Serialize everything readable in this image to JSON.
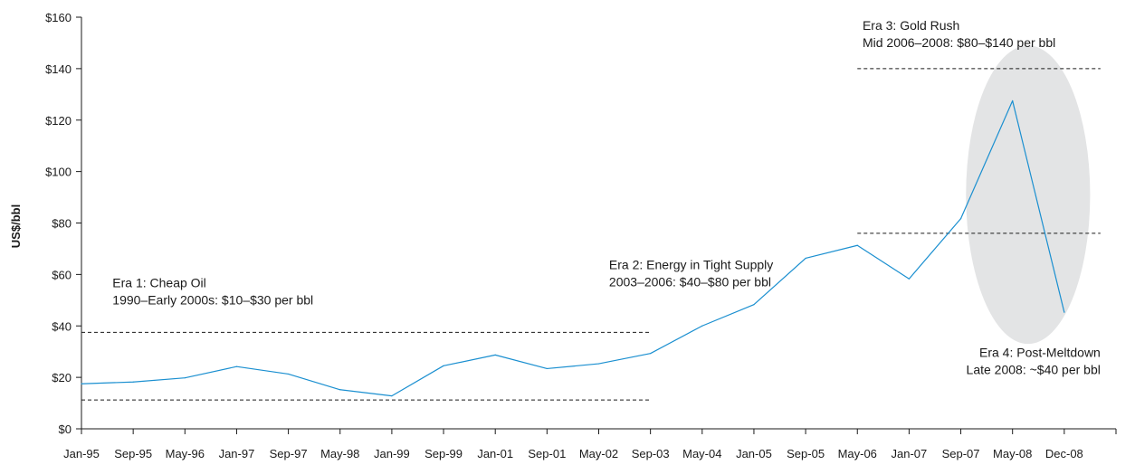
{
  "chart_data": {
    "type": "line",
    "title": "",
    "xlabel": "",
    "ylabel": "US$/bbl",
    "ylim": [
      0,
      160
    ],
    "y_ticks": [
      "$0",
      "$20",
      "$40",
      "$60",
      "$80",
      "$100",
      "$120",
      "$140",
      "$160"
    ],
    "grid": false,
    "x_tick_labels": [
      "Jan-95",
      "Sep-95",
      "May-96",
      "Jan-97",
      "Sep-97",
      "May-98",
      "Jan-99",
      "Sep-99",
      "Jan-01",
      "Sep-01",
      "May-02",
      "Sep-03",
      "May-04",
      "Jan-05",
      "Sep-05",
      "May-06",
      "Jan-07",
      "Sep-07",
      "May-08",
      "Dec-08"
    ],
    "series": [
      {
        "color": "#1a8fd0",
        "points": [
          {
            "x": 0,
            "y": 17.5
          },
          {
            "x": 1,
            "y": 18.2
          },
          {
            "x": 2,
            "y": 19.8
          },
          {
            "x": 3,
            "y": 24.2
          },
          {
            "x": 4,
            "y": 21.3
          },
          {
            "x": 5,
            "y": 15.2
          },
          {
            "x": 6,
            "y": 12.8
          },
          {
            "x": 7,
            "y": 24.5
          },
          {
            "x": 8,
            "y": 28.7
          },
          {
            "x": 9,
            "y": 23.4
          },
          {
            "x": 10,
            "y": 25.3
          },
          {
            "x": 11,
            "y": 29.3
          },
          {
            "x": 12,
            "y": 40.0
          },
          {
            "x": 13,
            "y": 48.3
          },
          {
            "x": 14,
            "y": 66.3
          },
          {
            "x": 15,
            "y": 71.3
          },
          {
            "x": 16,
            "y": 58.3
          },
          {
            "x": 17,
            "y": 81.7
          },
          {
            "x": 18,
            "y": 127.5
          },
          {
            "x": 19,
            "y": 45.3
          }
        ]
      }
    ],
    "reference_lines": [
      {
        "y": 37.5,
        "x_from": 0,
        "x_to": 11
      },
      {
        "y": 11.2,
        "x_from": 0,
        "x_to": 11
      },
      {
        "y": 140,
        "x_from": 15,
        "x_to": 19.7
      },
      {
        "y": 76,
        "x_from": 15,
        "x_to": 19.7
      }
    ],
    "highlight": {
      "type": "ellipse",
      "cx": 18.3,
      "cy": 91,
      "rx": 1.2,
      "ry": 58,
      "color": "#e3e4e5"
    },
    "annotations": [
      {
        "lines": [
          "Era 1: Cheap Oil",
          "1990–Early 2000s: $10–$30 per bbl"
        ],
        "x": 0.6,
        "y": 55,
        "anchor": "start"
      },
      {
        "lines": [
          "Era 2: Energy in Tight Supply",
          "2003–2006: $40–$80 per bbl"
        ],
        "x": 10.2,
        "y": 62,
        "anchor": "start"
      },
      {
        "lines": [
          "Era 3: Gold Rush",
          "Mid 2006–2008: $80–$140 per bbl"
        ],
        "x": 15.1,
        "y": 155,
        "anchor": "start"
      },
      {
        "lines": [
          "Era 4: Post-Meltdown",
          "Late 2008: ~$40 per bbl"
        ],
        "x": 19.7,
        "y": 28,
        "anchor": "end"
      }
    ]
  }
}
